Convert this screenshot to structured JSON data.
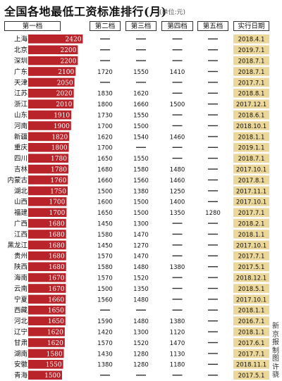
{
  "title": "全国各地最低工资标准排行(月)",
  "unit": "(单位:元)",
  "credit": "新京报制图 许骁",
  "colors": {
    "bar": "#b8242a",
    "barText": "#ffffff",
    "dateBg": "#ecd79b",
    "dash": "#333333",
    "rowText": "#111111"
  },
  "chart_data": {
    "type": "bar",
    "columns": [
      "第一档",
      "第二档",
      "第三档",
      "第四档",
      "第五档",
      "实行日期"
    ],
    "xlim": [
      0,
      2500
    ],
    "rows": [
      {
        "region": "上海",
        "tiers": [
          2420,
          null,
          null,
          null,
          null
        ],
        "date": "2018.4.1"
      },
      {
        "region": "北京",
        "tiers": [
          2200,
          null,
          null,
          null,
          null
        ],
        "date": "2019.7.1"
      },
      {
        "region": "深圳",
        "tiers": [
          2200,
          null,
          null,
          null,
          null
        ],
        "date": "2018.7.1"
      },
      {
        "region": "广东",
        "tiers": [
          2100,
          1720,
          1550,
          1410,
          null
        ],
        "date": "2018.7.1"
      },
      {
        "region": "天津",
        "tiers": [
          2050,
          null,
          null,
          null,
          null
        ],
        "date": "2017.7.1"
      },
      {
        "region": "江苏",
        "tiers": [
          2020,
          1830,
          1620,
          null,
          null
        ],
        "date": "2018.8.1"
      },
      {
        "region": "浙江",
        "tiers": [
          2010,
          1800,
          1660,
          1500,
          null
        ],
        "date": "2017.12.1"
      },
      {
        "region": "山东",
        "tiers": [
          1910,
          1730,
          1550,
          null,
          null
        ],
        "date": "2018.6.1"
      },
      {
        "region": "河南",
        "tiers": [
          1900,
          1700,
          1500,
          null,
          null
        ],
        "date": "2018.10.1"
      },
      {
        "region": "新疆",
        "tiers": [
          1820,
          1620,
          1540,
          1460,
          null
        ],
        "date": "2018.1.1"
      },
      {
        "region": "重庆",
        "tiers": [
          1800,
          1700,
          null,
          null,
          null
        ],
        "date": "2019.1.1"
      },
      {
        "region": "四川",
        "tiers": [
          1780,
          1650,
          1550,
          null,
          null
        ],
        "date": "2018.7.1"
      },
      {
        "region": "吉林",
        "tiers": [
          1780,
          1680,
          1580,
          1480,
          null
        ],
        "date": "2017.10.1"
      },
      {
        "region": "内蒙古",
        "tiers": [
          1760,
          1660,
          1560,
          1460,
          null
        ],
        "date": "2017.8.1"
      },
      {
        "region": "湖北",
        "tiers": [
          1750,
          1500,
          1380,
          1250,
          null
        ],
        "date": "2017.11.1"
      },
      {
        "region": "山西",
        "tiers": [
          1700,
          1600,
          1500,
          1400,
          null
        ],
        "date": "2017.10.1"
      },
      {
        "region": "福建",
        "tiers": [
          1700,
          1650,
          1500,
          1350,
          1280
        ],
        "date": "2017.7.1"
      },
      {
        "region": "广西",
        "tiers": [
          1680,
          1450,
          1300,
          null,
          null
        ],
        "date": "2018.2.1"
      },
      {
        "region": "江西",
        "tiers": [
          1680,
          1580,
          1470,
          null,
          null
        ],
        "date": "2018.1.1"
      },
      {
        "region": "黑龙江",
        "tiers": [
          1680,
          1450,
          1270,
          null,
          null
        ],
        "date": "2017.10.1"
      },
      {
        "region": "贵州",
        "tiers": [
          1680,
          1570,
          1470,
          null,
          null
        ],
        "date": "2017.7.1"
      },
      {
        "region": "陕西",
        "tiers": [
          1680,
          1580,
          1480,
          1380,
          null
        ],
        "date": "2017.5.1"
      },
      {
        "region": "海南",
        "tiers": [
          1670,
          1570,
          1520,
          null,
          null
        ],
        "date": "2018.12.1"
      },
      {
        "region": "云南",
        "tiers": [
          1670,
          1500,
          1350,
          null,
          null
        ],
        "date": "2018.5.1"
      },
      {
        "region": "宁夏",
        "tiers": [
          1660,
          1560,
          1480,
          null,
          null
        ],
        "date": "2017.10.1"
      },
      {
        "region": "西藏",
        "tiers": [
          1650,
          null,
          null,
          null,
          null
        ],
        "date": "2018.1.1"
      },
      {
        "region": "河北",
        "tiers": [
          1650,
          1590,
          1480,
          1380,
          null
        ],
        "date": "2016.7.1"
      },
      {
        "region": "辽宁",
        "tiers": [
          1620,
          1420,
          1300,
          1120,
          null
        ],
        "date": "2018.1.1"
      },
      {
        "region": "甘肃",
        "tiers": [
          1620,
          1570,
          1520,
          1470,
          null
        ],
        "date": "2017.6.1"
      },
      {
        "region": "湖南",
        "tiers": [
          1580,
          1430,
          1280,
          1130,
          null
        ],
        "date": "2017.7.1"
      },
      {
        "region": "安徽",
        "tiers": [
          1550,
          1380,
          1280,
          1180,
          null
        ],
        "date": "2018.11.1"
      },
      {
        "region": "青海",
        "tiers": [
          1500,
          null,
          null,
          null,
          null
        ],
        "date": "2017.5.1"
      }
    ]
  }
}
